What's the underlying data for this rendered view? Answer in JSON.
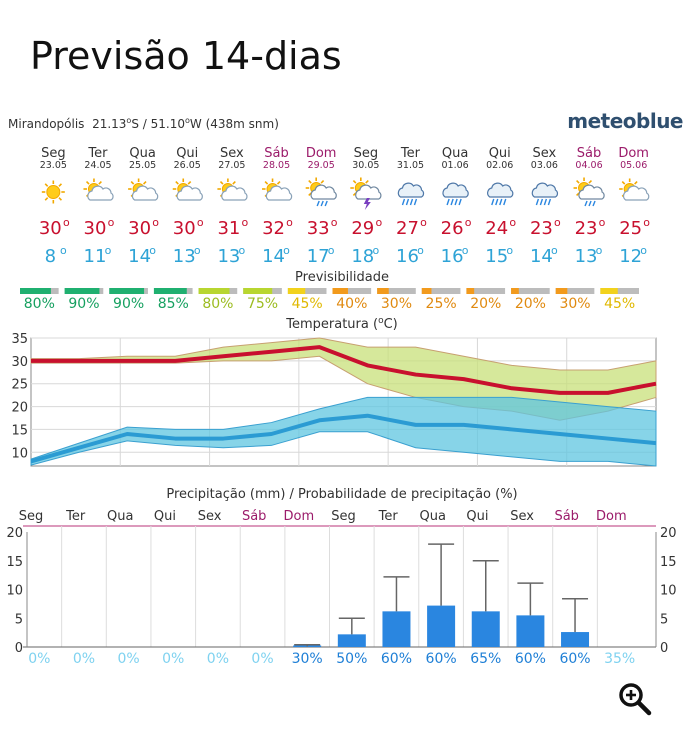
{
  "page": {
    "title": "Previsão 14-dias"
  },
  "location": {
    "name": "Mirandopólis",
    "lat": "21.13",
    "lat_dir": "S",
    "lon": "51.10",
    "lon_dir": "W",
    "elevation": "(438m snm)"
  },
  "logo": "meteoblue",
  "colors": {
    "weekend": "#9b1b6a",
    "max_temp": "#c8102e",
    "min_temp": "#2ea3d6",
    "max_band": "#c8e07a",
    "min_band": "#5fc6e0",
    "precip_bar": "#2a86e0",
    "prob_strong": "#1e7fd6",
    "prob_light": "#7fd2f0"
  },
  "days": [
    {
      "name": "Seg",
      "date": "23.05",
      "weekend": false,
      "icon": "sun-icon"
    },
    {
      "name": "Ter",
      "date": "24.05",
      "weekend": false,
      "icon": "sun-cloud-icon"
    },
    {
      "name": "Qua",
      "date": "25.05",
      "weekend": false,
      "icon": "sun-cloud-icon"
    },
    {
      "name": "Qui",
      "date": "26.05",
      "weekend": false,
      "icon": "sun-cloud-icon"
    },
    {
      "name": "Sex",
      "date": "27.05",
      "weekend": false,
      "icon": "sun-cloud-icon"
    },
    {
      "name": "Sáb",
      "date": "28.05",
      "weekend": true,
      "icon": "sun-cloud-icon"
    },
    {
      "name": "Dom",
      "date": "29.05",
      "weekend": true,
      "icon": "sun-cloud-rain-icon"
    },
    {
      "name": "Seg",
      "date": "30.05",
      "weekend": false,
      "icon": "thunder-sun-icon"
    },
    {
      "name": "Ter",
      "date": "31.05",
      "weekend": false,
      "icon": "cloud-rain-icon"
    },
    {
      "name": "Qua",
      "date": "01.06",
      "weekend": false,
      "icon": "cloud-rain-icon"
    },
    {
      "name": "Qui",
      "date": "02.06",
      "weekend": false,
      "icon": "cloud-rain-icon"
    },
    {
      "name": "Sex",
      "date": "03.06",
      "weekend": false,
      "icon": "cloud-rain-icon"
    },
    {
      "name": "Sáb",
      "date": "04.06",
      "weekend": true,
      "icon": "sun-cloud-rain-icon"
    },
    {
      "name": "Dom",
      "date": "05.06",
      "weekend": true,
      "icon": "sun-cloud-icon"
    }
  ],
  "degree_symbol": "o",
  "predictability": {
    "title": "Previsibilidade",
    "values": [
      "80%",
      "90%",
      "90%",
      "85%",
      "80%",
      "75%",
      "45%",
      "40%",
      "30%",
      "25%",
      "20%",
      "20%",
      "30%",
      "45%"
    ],
    "fill": [
      0.8,
      0.9,
      0.9,
      0.85,
      0.8,
      0.75,
      0.45,
      0.4,
      0.3,
      0.25,
      0.2,
      0.2,
      0.3,
      0.45
    ],
    "colors": [
      "#1fb070",
      "#1fb070",
      "#1fb070",
      "#1fb070",
      "#b8d630",
      "#b8d630",
      "#f2d21c",
      "#f29a1c",
      "#f29a1c",
      "#f29a1c",
      "#f29a1c",
      "#f29a1c",
      "#f29a1c",
      "#f2d21c"
    ],
    "text_colors": [
      "#16a060",
      "#16a060",
      "#16a060",
      "#16a060",
      "#9cbc20",
      "#9cbc20",
      "#e0b800",
      "#e08a10",
      "#e08a10",
      "#e08a10",
      "#e08a10",
      "#e08a10",
      "#e08a10",
      "#e0b800"
    ]
  },
  "chart_data": [
    {
      "type": "line",
      "title": "Temperatura (°C)",
      "title_parts": [
        "Temperatura (",
        "o",
        "C)"
      ],
      "ylim": [
        7,
        35
      ],
      "yticks": [
        10,
        15,
        20,
        25,
        30,
        35
      ],
      "x_days": 14,
      "series": [
        {
          "role": "max",
          "values": [
            30,
            30,
            30,
            30,
            31,
            32,
            33,
            29,
            27,
            26,
            24,
            23,
            23,
            25
          ]
        },
        {
          "role": "min",
          "values": [
            8,
            11,
            14,
            13,
            13,
            14,
            17,
            18,
            16,
            16,
            15,
            14,
            13,
            12
          ]
        }
      ],
      "max_band_upper": [
        30.5,
        30.5,
        31,
        31,
        33,
        34,
        35,
        33,
        33,
        31,
        29,
        28,
        28,
        30
      ],
      "max_band_lower": [
        29.5,
        29.5,
        29.5,
        29.5,
        30,
        30,
        31,
        25,
        22,
        20,
        19,
        17,
        19,
        22
      ],
      "min_band_upper": [
        8.5,
        12,
        15.5,
        15,
        15,
        16.5,
        19.5,
        22,
        22,
        22,
        22,
        21,
        20,
        19
      ],
      "min_band_lower": [
        7.2,
        10,
        12.5,
        11.5,
        11,
        11.5,
        14.5,
        14.5,
        11,
        10,
        9,
        8,
        8,
        7
      ],
      "grid": true
    },
    {
      "type": "bar",
      "title": "Precipitação (mm) / Probabilidade de precipitação (%)",
      "ylim": [
        0,
        20
      ],
      "yticks": [
        0,
        5,
        10,
        15,
        20
      ],
      "day_labels": [
        "Seg",
        "Ter",
        "Qua",
        "Qui",
        "Sex",
        "Sáb",
        "Dom",
        "Seg",
        "Ter",
        "Qua",
        "Qui",
        "Sex",
        "Sáb",
        "Dom"
      ],
      "values": [
        0,
        0,
        0,
        0,
        0,
        0,
        0.1,
        2.2,
        6.2,
        7.2,
        6.2,
        5.5,
        2.6,
        0
      ],
      "error_high": [
        0,
        0,
        0,
        0,
        0,
        0,
        0.4,
        5,
        12.2,
        17.9,
        15,
        11.1,
        8.4,
        0
      ],
      "probability": [
        "0%",
        "0%",
        "0%",
        "0%",
        "0%",
        "0%",
        "30%",
        "50%",
        "60%",
        "60%",
        "65%",
        "60%",
        "60%",
        "35%"
      ],
      "probability_strong": [
        false,
        false,
        false,
        false,
        false,
        false,
        true,
        true,
        true,
        true,
        true,
        true,
        true,
        false
      ]
    }
  ],
  "zoom_button": {
    "label": "zoom-in"
  }
}
